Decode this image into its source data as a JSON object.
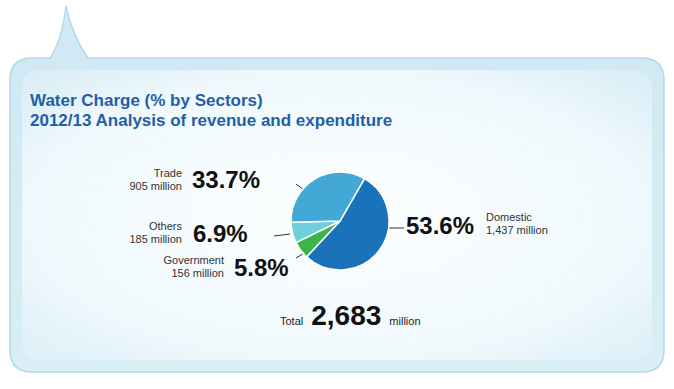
{
  "chart_data": {
    "type": "pie",
    "title": "Water Charge (% by Sectors)",
    "subtitle": "2012/13 Analysis of revenue and expenditure",
    "categories": [
      "Domestic",
      "Government",
      "Others",
      "Trade"
    ],
    "values": [
      53.6,
      5.8,
      6.9,
      33.7
    ],
    "value_labels": [
      "53.6%",
      "5.8%",
      "6.9%",
      "33.7%"
    ],
    "amount_labels": [
      "1,437 million",
      "156 million",
      "185 million",
      "905 million"
    ],
    "colors": [
      "#1a72bb",
      "#3db44a",
      "#6ecfd8",
      "#44a8d6"
    ],
    "data_labels": true,
    "total_label": "Total",
    "total_value_label": "2,683",
    "total_unit": "million"
  }
}
